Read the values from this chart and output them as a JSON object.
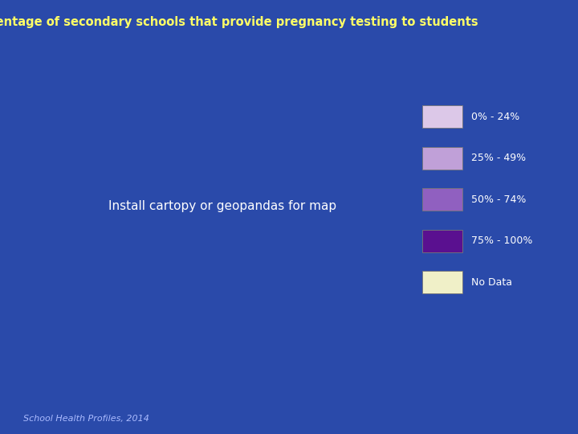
{
  "title": "Percentage of secondary schools that provide pregnancy testing to students",
  "title_color": "#FFFF66",
  "title_fontsize": 10.5,
  "background_outer": "#2a4aaa",
  "background_inner": "#0a1a80",
  "map_background": "#0020a0",
  "legend_items": [
    {
      "label": "0% - 24%",
      "color": "#dcc8e8"
    },
    {
      "label": "25% - 49%",
      "color": "#c0a0d8"
    },
    {
      "label": "50% - 74%",
      "color": "#9060c0"
    },
    {
      "label": "75% - 100%",
      "color": "#5a1090"
    },
    {
      "label": "No Data",
      "color": "#f0f0c8"
    }
  ],
  "legend_text_color": "#ffffff",
  "legend_fontsize": 9,
  "source_text": "School Health Profiles, 2014",
  "source_fontsize": 8,
  "source_color": "#aabbff",
  "state_colors": {
    "Alabama": "#dcc8e8",
    "Alaska": "#dcc8e8",
    "Arizona": "#dcc8e8",
    "Arkansas": "#dcc8e8",
    "California": "#dcc8e8",
    "Colorado": "#dcc8e8",
    "Connecticut": "#dcc8e8",
    "Delaware": "#dcc8e8",
    "Florida": "#dcc8e8",
    "Georgia": "#dcc8e8",
    "Hawaii": "#dcc8e8",
    "Idaho": "#dcc8e8",
    "Illinois": "#dcc8e8",
    "Indiana": "#dcc8e8",
    "Iowa": "#dcc8e8",
    "Kansas": "#dcc8e8",
    "Kentucky": "#dcc8e8",
    "Louisiana": "#f0f0c8",
    "Maine": "#dcc8e8",
    "Maryland": "#dcc8e8",
    "Massachusetts": "#dcc8e8",
    "Michigan": "#dcc8e8",
    "Minnesota": "#dcc8e8",
    "Mississippi": "#dcc8e8",
    "Missouri": "#dcc8e8",
    "Montana": "#dcc8e8",
    "Nebraska": "#dcc8e8",
    "Nevada": "#dcc8e8",
    "New Hampshire": "#dcc8e8",
    "New Jersey": "#dcc8e8",
    "New Mexico": "#f0f0c8",
    "New York": "#dcc8e8",
    "North Carolina": "#dcc8e8",
    "North Dakota": "#dcc8e8",
    "Ohio": "#dcc8e8",
    "Oklahoma": "#dcc8e8",
    "Oregon": "#dcc8e8",
    "Pennsylvania": "#dcc8e8",
    "Rhode Island": "#dcc8e8",
    "South Carolina": "#dcc8e8",
    "South Dakota": "#dcc8e8",
    "Tennessee": "#dcc8e8",
    "Texas": "#dcc8e8",
    "Utah": "#f0f0c8",
    "Vermont": "#dcc8e8",
    "Virginia": "#dcc8e8",
    "Washington": "#dcc8e8",
    "West Virginia": "#dcc8e8",
    "Wisconsin": "#dcc8e8",
    "Wyoming": "#dcc8e8"
  },
  "border_color": "#ffffff",
  "border_linewidth": 0.5
}
